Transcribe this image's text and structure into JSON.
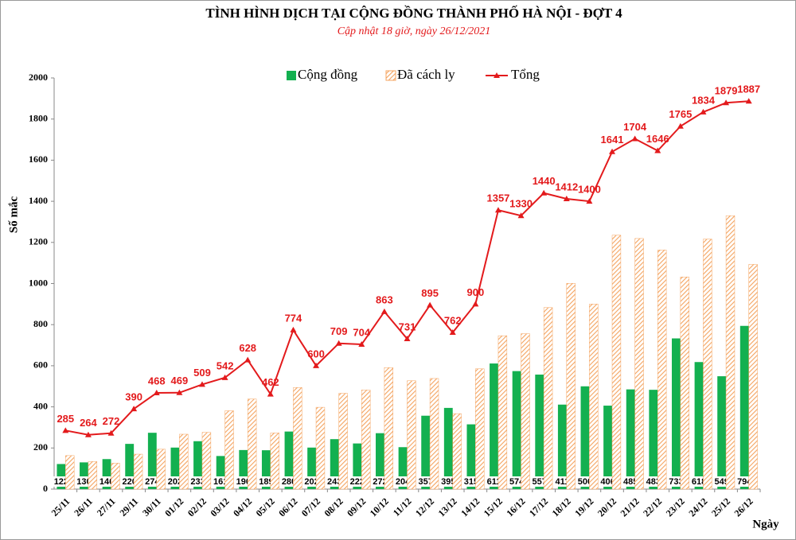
{
  "chart_data": {
    "type": "bar",
    "title": "TÌNH HÌNH DỊCH TẠI CỘNG ĐỒNG THÀNH PHỐ HÀ NỘI - ĐỢT 4",
    "subtitle": "Cập nhật 18 giờ, ngày 26/12/2021",
    "y_label": "Số mắc",
    "x_label": "Ngày",
    "categories": [
      "25/11",
      "26/11",
      "27/11",
      "29/11",
      "30/11",
      "01/12",
      "02/12",
      "03/12",
      "04/12",
      "05/12",
      "06/12",
      "07/12",
      "08/12",
      "09/12",
      "10/12",
      "11/12",
      "12/12",
      "13/12",
      "14/12",
      "15/12",
      "16/12",
      "17/12",
      "18/12",
      "19/12",
      "20/12",
      "21/12",
      "22/12",
      "23/12",
      "24/12",
      "25/12",
      "26/12"
    ],
    "series": [
      {
        "name": "Cộng đồng",
        "type": "bar",
        "color": "#13b050",
        "values": [
          122,
          130,
          146,
          220,
          274,
          202,
          233,
          161,
          190,
          189,
          280,
          202,
          243,
          222,
          272,
          204,
          357,
          395,
          315,
          611,
          574,
          557,
          411,
          500,
          406,
          485,
          483,
          733,
          618,
          549,
          794
        ]
      },
      {
        "name": "Đã cách ly",
        "type": "bar",
        "color": "#f4a460",
        "hatch": true,
        "values": [
          163,
          134,
          126,
          170,
          194,
          267,
          276,
          381,
          438,
          273,
          494,
          398,
          466,
          482,
          591,
          527,
          538,
          367,
          585,
          746,
          756,
          883,
          1001,
          900,
          1235,
          1219,
          1163,
          1032,
          1216,
          1330,
          1093
        ]
      },
      {
        "name": "Tổng",
        "type": "line",
        "color": "#e31a1c",
        "values": [
          285,
          264,
          272,
          390,
          468,
          469,
          509,
          542,
          628,
          462,
          774,
          600,
          709,
          704,
          863,
          731,
          895,
          762,
          900,
          1357,
          1330,
          1440,
          1412,
          1400,
          1641,
          1704,
          1646,
          1765,
          1834,
          1879,
          1887
        ]
      }
    ],
    "ylim": [
      0,
      2000
    ],
    "yticks": [
      0,
      200,
      400,
      600,
      800,
      1000,
      1200,
      1400,
      1600,
      1800,
      2000
    ]
  }
}
